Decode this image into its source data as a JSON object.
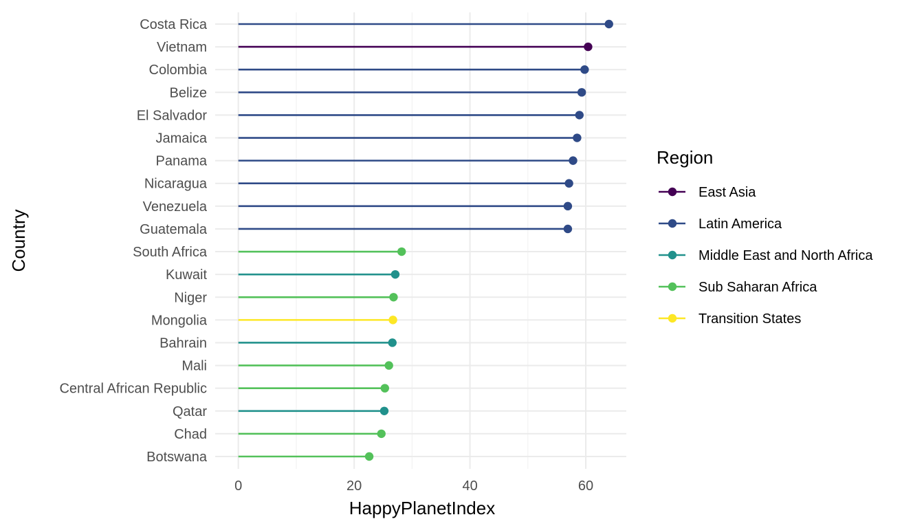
{
  "chart_data": {
    "type": "lollipop",
    "xlabel": "HappyPlanetIndex",
    "ylabel": "Country",
    "xlim": [
      -4,
      67
    ],
    "x_ticks": [
      0,
      20,
      40,
      60
    ],
    "x_tick_labels": [
      "0",
      "20",
      "40",
      "60"
    ],
    "grid": true,
    "legend": {
      "title": "Region",
      "placement": "right",
      "entries": [
        {
          "name": "East Asia",
          "color": "#440154"
        },
        {
          "name": "Latin America",
          "color": "#2f4a87"
        },
        {
          "name": "Middle East and North Africa",
          "color": "#21918c"
        },
        {
          "name": "Sub Saharan Africa",
          "color": "#53c15a"
        },
        {
          "name": "Transition States",
          "color": "#fde725"
        }
      ]
    },
    "points": [
      {
        "country": "Costa Rica",
        "value": 64.0,
        "region": "Latin America"
      },
      {
        "country": "Vietnam",
        "value": 60.4,
        "region": "East Asia"
      },
      {
        "country": "Colombia",
        "value": 59.8,
        "region": "Latin America"
      },
      {
        "country": "Belize",
        "value": 59.3,
        "region": "Latin America"
      },
      {
        "country": "El Salvador",
        "value": 58.9,
        "region": "Latin America"
      },
      {
        "country": "Jamaica",
        "value": 58.5,
        "region": "Latin America"
      },
      {
        "country": "Panama",
        "value": 57.8,
        "region": "Latin America"
      },
      {
        "country": "Nicaragua",
        "value": 57.1,
        "region": "Latin America"
      },
      {
        "country": "Venezuela",
        "value": 56.9,
        "region": "Latin America"
      },
      {
        "country": "Guatemala",
        "value": 56.9,
        "region": "Latin America"
      },
      {
        "country": "South Africa",
        "value": 28.2,
        "region": "Sub Saharan Africa"
      },
      {
        "country": "Kuwait",
        "value": 27.1,
        "region": "Middle East and North Africa"
      },
      {
        "country": "Niger",
        "value": 26.8,
        "region": "Sub Saharan Africa"
      },
      {
        "country": "Mongolia",
        "value": 26.7,
        "region": "Transition States"
      },
      {
        "country": "Bahrain",
        "value": 26.6,
        "region": "Middle East and North Africa"
      },
      {
        "country": "Mali",
        "value": 26.0,
        "region": "Sub Saharan Africa"
      },
      {
        "country": "Central African Republic",
        "value": 25.3,
        "region": "Sub Saharan Africa"
      },
      {
        "country": "Qatar",
        "value": 25.2,
        "region": "Middle East and North Africa"
      },
      {
        "country": "Chad",
        "value": 24.7,
        "region": "Sub Saharan Africa"
      },
      {
        "country": "Botswana",
        "value": 22.6,
        "region": "Sub Saharan Africa"
      }
    ]
  }
}
